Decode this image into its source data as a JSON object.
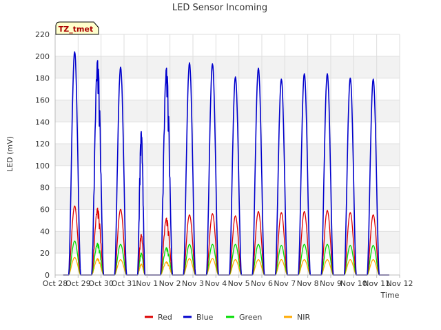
{
  "chart_data": {
    "type": "line",
    "title": "LED Sensor Incoming",
    "xlabel": "Time",
    "ylabel": "LED (mV)",
    "ylim": [
      0,
      220
    ],
    "yticks": [
      0,
      20,
      40,
      60,
      80,
      100,
      120,
      140,
      160,
      180,
      200,
      220
    ],
    "x_range_days": [
      0,
      15
    ],
    "x_tick_labels": [
      "Oct 28",
      "Oct 29",
      "Oct 30",
      "Oct 31",
      "Nov 1",
      "Nov 2",
      "Nov 3",
      "Nov 4",
      "Nov 5",
      "Nov 6",
      "Nov 7",
      "Nov 8",
      "Nov 9",
      "Nov 10",
      "Nov 11",
      "Nov 12"
    ],
    "x_tick_days": [
      0,
      1,
      2,
      3,
      4,
      5,
      6,
      7,
      8,
      9,
      10,
      11,
      12,
      13,
      14,
      15
    ],
    "grid": true,
    "legend_position": "bottom",
    "annotation": "TZ_tmet",
    "daily_peak_centers_days": [
      0.85,
      1.85,
      2.85,
      3.75,
      4.85,
      5.85,
      6.85,
      7.85,
      8.85,
      9.85,
      10.85,
      11.85,
      12.85,
      13.85
    ],
    "series": [
      {
        "name": "Red",
        "color": "#dd0000",
        "daily_peaks": [
          63,
          61,
          60,
          37,
          52,
          55,
          56,
          54,
          58,
          57,
          58,
          59,
          57,
          55
        ]
      },
      {
        "name": "Blue",
        "color": "#0000cc",
        "daily_peaks": [
          204,
          196,
          190,
          131,
          189,
          194,
          193,
          181,
          189,
          179,
          184,
          184,
          180,
          179
        ]
      },
      {
        "name": "Green",
        "color": "#00dd00",
        "daily_peaks": [
          31,
          29,
          28,
          20,
          25,
          28,
          28,
          28,
          28,
          27,
          28,
          28,
          27,
          27
        ]
      },
      {
        "name": "NIR",
        "color": "#ffaa00",
        "daily_peaks": [
          16,
          15,
          14,
          10,
          12,
          15,
          15,
          14,
          14,
          14,
          14,
          14,
          14,
          14
        ]
      }
    ]
  }
}
